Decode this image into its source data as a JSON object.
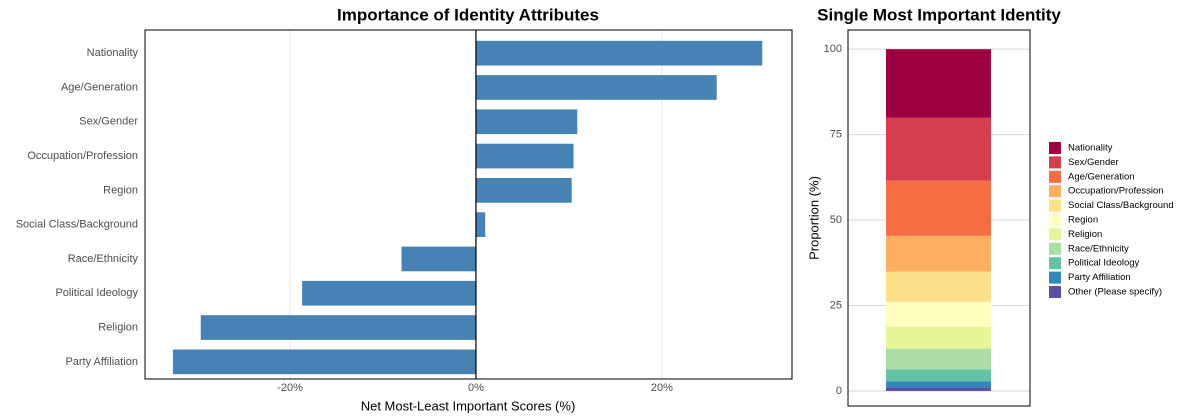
{
  "chart_data": [
    {
      "type": "hbar",
      "title": "Importance of Identity Attributes",
      "x_label": "Net Most-Least Important Scores (%)",
      "categories": [
        "Nationality",
        "Age/Generation",
        "Sex/Gender",
        "Occupation/Profession",
        "Region",
        "Social Class/Background",
        "Race/Ethnicity",
        "Political Ideology",
        "Religion",
        "Party Affiliation"
      ],
      "values": [
        30.8,
        25.9,
        10.9,
        10.5,
        10.3,
        1.0,
        -8.0,
        -18.7,
        -29.6,
        -32.6
      ],
      "color": "#4682b4",
      "xlim": [
        -35.6,
        34.0
      ],
      "xticks": [
        {
          "value": -20,
          "label": "-20%"
        },
        {
          "value": 0,
          "label": "0%"
        },
        {
          "value": 20,
          "label": "20%"
        }
      ],
      "grid": true
    },
    {
      "type": "stacked_bar",
      "title": "Single Most Important Identity",
      "y_label": "Proportion (%)",
      "series": [
        {
          "name": "Nationality",
          "color": "#9e0142",
          "values": [
            20.1
          ]
        },
        {
          "name": "Sex/Gender",
          "color": "#d53e4f",
          "values": [
            18.4
          ]
        },
        {
          "name": "Age/Generation",
          "color": "#f46d43",
          "values": [
            16.1
          ]
        },
        {
          "name": "Occupation/Profession",
          "color": "#fdae61",
          "values": [
            10.5
          ]
        },
        {
          "name": "Social Class/Background",
          "color": "#fee08b",
          "values": [
            8.8
          ]
        },
        {
          "name": "Region",
          "color": "#ffffbf",
          "values": [
            7.3
          ]
        },
        {
          "name": "Religion",
          "color": "#e6f598",
          "values": [
            6.4
          ]
        },
        {
          "name": "Race/Ethnicity",
          "color": "#abdda4",
          "values": [
            6.1
          ]
        },
        {
          "name": "Political Ideology",
          "color": "#66c2a5",
          "values": [
            3.5
          ]
        },
        {
          "name": "Party Affiliation",
          "color": "#3288bd",
          "values": [
            1.8
          ]
        },
        {
          "name": "Other (Please specify)",
          "color": "#5e4fa2",
          "values": [
            1.0
          ]
        }
      ],
      "ylim": [
        -4.4,
        105.6
      ],
      "yticks": [
        0,
        25,
        50,
        75,
        100
      ],
      "grid": true
    }
  ]
}
